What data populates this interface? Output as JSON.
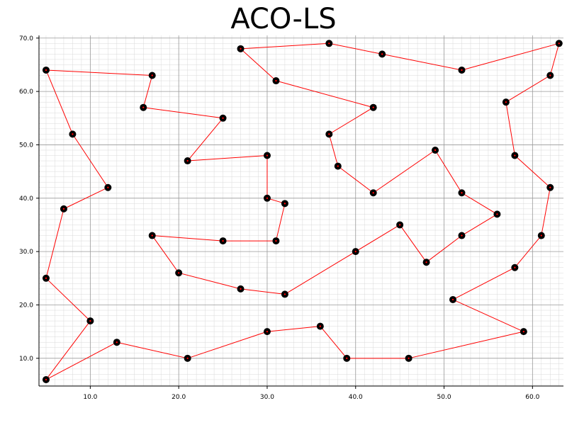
{
  "chart_data": {
    "type": "line",
    "title": "ACO-LS",
    "xlabel": "",
    "ylabel": "",
    "xlim": [
      4.2,
      63.5
    ],
    "ylim": [
      4.8,
      70.5
    ],
    "x_ticks": [
      "10.0",
      "20.0",
      "30.0",
      "40.0",
      "50.0",
      "60.0"
    ],
    "y_ticks": [
      "10.0",
      "20.0",
      "30.0",
      "40.0",
      "50.0",
      "60.0",
      "70.0"
    ],
    "grid": true,
    "colors": {
      "line": "#ff0000",
      "marker": "#000000",
      "major_grid": "#999999",
      "minor_grid": "#d9d9d9"
    },
    "tour": [
      [
        5,
        64
      ],
      [
        17,
        63
      ],
      [
        16,
        57
      ],
      [
        25,
        55
      ],
      [
        21,
        47
      ],
      [
        30,
        48
      ],
      [
        30,
        40
      ],
      [
        32,
        39
      ],
      [
        31,
        32
      ],
      [
        25,
        32
      ],
      [
        17,
        33
      ],
      [
        20,
        26
      ],
      [
        27,
        23
      ],
      [
        32,
        22
      ],
      [
        40,
        30
      ],
      [
        45,
        35
      ],
      [
        48,
        28
      ],
      [
        52,
        33
      ],
      [
        56,
        37
      ],
      [
        52,
        41
      ],
      [
        49,
        49
      ],
      [
        42,
        41
      ],
      [
        38,
        46
      ],
      [
        37,
        52
      ],
      [
        42,
        57
      ],
      [
        31,
        62
      ],
      [
        27,
        68
      ],
      [
        37,
        69
      ],
      [
        43,
        67
      ],
      [
        52,
        64
      ],
      [
        63,
        69
      ],
      [
        62,
        63
      ],
      [
        57,
        58
      ],
      [
        58,
        48
      ],
      [
        62,
        42
      ],
      [
        61,
        33
      ],
      [
        58,
        27
      ],
      [
        51,
        21
      ],
      [
        59,
        15
      ],
      [
        46,
        10
      ],
      [
        39,
        10
      ],
      [
        36,
        16
      ],
      [
        30,
        15
      ],
      [
        21,
        10
      ],
      [
        13,
        13
      ],
      [
        5,
        6
      ],
      [
        10,
        17
      ],
      [
        5,
        25
      ],
      [
        7,
        38
      ],
      [
        12,
        42
      ],
      [
        8,
        52
      ],
      [
        5,
        64
      ]
    ]
  }
}
